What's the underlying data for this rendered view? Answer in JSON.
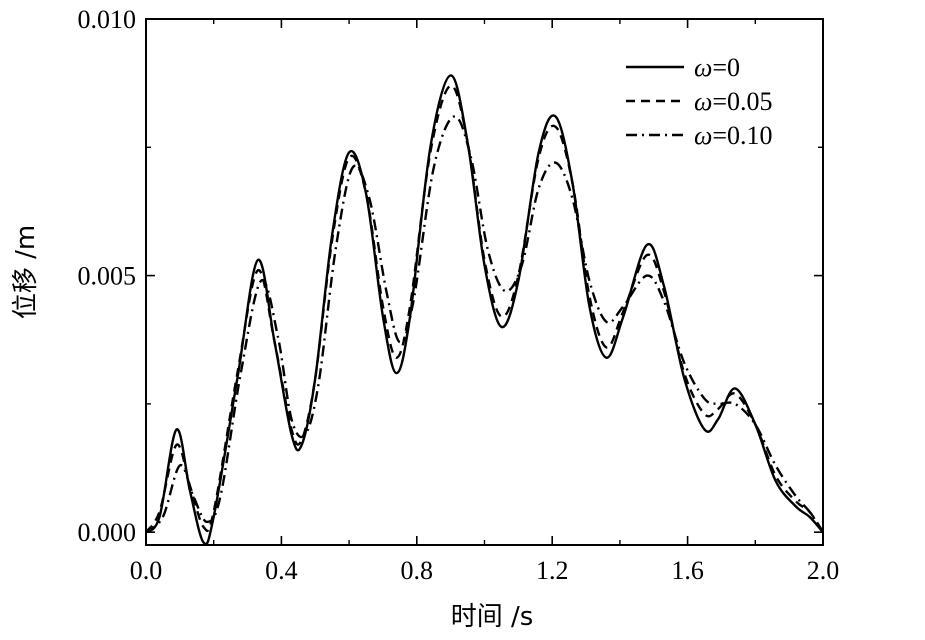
{
  "chart_data": {
    "type": "line",
    "xlabel": "时间 /s",
    "ylabel": "位移 /m",
    "xlim": [
      0,
      2.0
    ],
    "ylim": [
      -0.00025,
      0.01
    ],
    "x_ticks": [
      0.0,
      0.4,
      0.8,
      1.2,
      1.6,
      2.0
    ],
    "x_tick_labels": [
      "0.0",
      "0.4",
      "0.8",
      "1.2",
      "1.6",
      "2.0"
    ],
    "y_ticks": [
      0.0,
      0.005,
      0.01
    ],
    "y_tick_labels": [
      "0.000",
      "0.005",
      "0.010"
    ],
    "grid": false,
    "legend_position": "top-right",
    "series": [
      {
        "name": "ω=0",
        "omega_symbol": "ω",
        "omega_value": "=0",
        "style": "solid",
        "points": [
          [
            0.0,
            0.0
          ],
          [
            0.04,
            0.0003
          ],
          [
            0.09,
            0.002
          ],
          [
            0.13,
            0.0008
          ],
          [
            0.17,
            -0.0002
          ],
          [
            0.2,
            0.0003
          ],
          [
            0.27,
            0.003
          ],
          [
            0.33,
            0.0053
          ],
          [
            0.38,
            0.0037
          ],
          [
            0.43,
            0.0019
          ],
          [
            0.46,
            0.0017
          ],
          [
            0.5,
            0.003
          ],
          [
            0.55,
            0.0058
          ],
          [
            0.6,
            0.0074
          ],
          [
            0.65,
            0.0066
          ],
          [
            0.7,
            0.0042
          ],
          [
            0.74,
            0.0031
          ],
          [
            0.78,
            0.0042
          ],
          [
            0.84,
            0.0075
          ],
          [
            0.9,
            0.0089
          ],
          [
            0.95,
            0.0076
          ],
          [
            1.0,
            0.0052
          ],
          [
            1.05,
            0.004
          ],
          [
            1.1,
            0.0049
          ],
          [
            1.16,
            0.0074
          ],
          [
            1.21,
            0.0081
          ],
          [
            1.26,
            0.0068
          ],
          [
            1.31,
            0.0044
          ],
          [
            1.36,
            0.0034
          ],
          [
            1.41,
            0.0042
          ],
          [
            1.48,
            0.0056
          ],
          [
            1.53,
            0.0048
          ],
          [
            1.59,
            0.003
          ],
          [
            1.65,
            0.002
          ],
          [
            1.69,
            0.0022
          ],
          [
            1.74,
            0.0028
          ],
          [
            1.8,
            0.0021
          ],
          [
            1.86,
            0.001
          ],
          [
            1.92,
            0.0005
          ],
          [
            1.96,
            0.0003
          ],
          [
            2.0,
            0.0
          ]
        ]
      },
      {
        "name": "ω=0.05",
        "omega_symbol": "ω",
        "omega_value": "=0.05",
        "style": "dashed",
        "points": [
          [
            0.0,
            0.0
          ],
          [
            0.04,
            0.0004
          ],
          [
            0.09,
            0.0017
          ],
          [
            0.13,
            0.0009
          ],
          [
            0.17,
            0.0001
          ],
          [
            0.2,
            0.0004
          ],
          [
            0.27,
            0.0031
          ],
          [
            0.33,
            0.0051
          ],
          [
            0.38,
            0.0037
          ],
          [
            0.43,
            0.002
          ],
          [
            0.46,
            0.0018
          ],
          [
            0.5,
            0.003
          ],
          [
            0.55,
            0.0057
          ],
          [
            0.6,
            0.0073
          ],
          [
            0.65,
            0.0066
          ],
          [
            0.7,
            0.0044
          ],
          [
            0.74,
            0.0034
          ],
          [
            0.78,
            0.0044
          ],
          [
            0.84,
            0.0074
          ],
          [
            0.9,
            0.0087
          ],
          [
            0.95,
            0.0076
          ],
          [
            1.0,
            0.0053
          ],
          [
            1.05,
            0.0042
          ],
          [
            1.1,
            0.005
          ],
          [
            1.16,
            0.0073
          ],
          [
            1.21,
            0.0079
          ],
          [
            1.26,
            0.0068
          ],
          [
            1.31,
            0.0046
          ],
          [
            1.36,
            0.0036
          ],
          [
            1.41,
            0.0043
          ],
          [
            1.48,
            0.0054
          ],
          [
            1.53,
            0.0047
          ],
          [
            1.59,
            0.0031
          ],
          [
            1.65,
            0.0023
          ],
          [
            1.69,
            0.0024
          ],
          [
            1.74,
            0.0027
          ],
          [
            1.8,
            0.0021
          ],
          [
            1.86,
            0.0011
          ],
          [
            1.92,
            0.0006
          ],
          [
            1.96,
            0.0004
          ],
          [
            2.0,
            0.0
          ]
        ]
      },
      {
        "name": "ω=0.10",
        "omega_symbol": "ω",
        "omega_value": "=0.10",
        "style": "dashdot",
        "points": [
          [
            0.0,
            0.0
          ],
          [
            0.05,
            0.0003
          ],
          [
            0.1,
            0.0013
          ],
          [
            0.14,
            0.0007
          ],
          [
            0.18,
            0.0002
          ],
          [
            0.22,
            0.0007
          ],
          [
            0.28,
            0.0031
          ],
          [
            0.34,
            0.0049
          ],
          [
            0.39,
            0.0038
          ],
          [
            0.43,
            0.0022
          ],
          [
            0.47,
            0.0019
          ],
          [
            0.51,
            0.0029
          ],
          [
            0.56,
            0.0055
          ],
          [
            0.61,
            0.0071
          ],
          [
            0.66,
            0.0065
          ],
          [
            0.71,
            0.0047
          ],
          [
            0.75,
            0.0037
          ],
          [
            0.79,
            0.0045
          ],
          [
            0.85,
            0.0071
          ],
          [
            0.91,
            0.0081
          ],
          [
            0.96,
            0.0073
          ],
          [
            1.01,
            0.0055
          ],
          [
            1.06,
            0.0047
          ],
          [
            1.11,
            0.0052
          ],
          [
            1.16,
            0.0067
          ],
          [
            1.21,
            0.0072
          ],
          [
            1.26,
            0.0065
          ],
          [
            1.31,
            0.0049
          ],
          [
            1.36,
            0.0041
          ],
          [
            1.41,
            0.0044
          ],
          [
            1.48,
            0.005
          ],
          [
            1.53,
            0.0045
          ],
          [
            1.59,
            0.0033
          ],
          [
            1.65,
            0.0026
          ],
          [
            1.69,
            0.0025
          ],
          [
            1.74,
            0.0025
          ],
          [
            1.8,
            0.0021
          ],
          [
            1.86,
            0.0013
          ],
          [
            1.92,
            0.0007
          ],
          [
            1.96,
            0.0004
          ],
          [
            2.0,
            0.0
          ]
        ]
      }
    ]
  }
}
